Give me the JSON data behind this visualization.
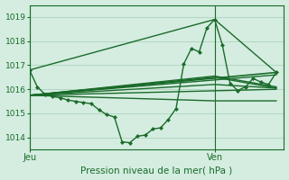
{
  "title": "Pression niveau de la mer( hPa )",
  "bg_color": "#d4ede0",
  "grid_color": "#a8ccb8",
  "line_color": "#1a6b2a",
  "ylim": [
    1013.5,
    1019.5
  ],
  "yticks": [
    1014,
    1015,
    1016,
    1017,
    1018,
    1019
  ],
  "xlim": [
    0,
    33
  ],
  "jeu_x": 0,
  "ven_x": 24,
  "series": [
    {
      "x": [
        0,
        1,
        2,
        3,
        4,
        5,
        6,
        7,
        8,
        9,
        10,
        11,
        12,
        13,
        14,
        15,
        16,
        17,
        18,
        19,
        20,
        21,
        22,
        23,
        24,
        25,
        26,
        27,
        28,
        29,
        30,
        31,
        32
      ],
      "y": [
        1016.8,
        1016.1,
        1015.8,
        1015.7,
        1015.65,
        1015.55,
        1015.5,
        1015.45,
        1015.4,
        1015.15,
        1014.95,
        1014.85,
        1013.82,
        1013.78,
        1014.05,
        1014.1,
        1014.35,
        1014.4,
        1014.75,
        1015.2,
        1017.05,
        1017.7,
        1017.55,
        1018.55,
        1018.9,
        1017.85,
        1016.25,
        1015.95,
        1016.1,
        1016.45,
        1016.3,
        1016.2,
        1016.7
      ],
      "lw": 1.0,
      "marker": true
    },
    {
      "x": [
        0,
        32
      ],
      "y": [
        1015.75,
        1016.6
      ],
      "lw": 1.0,
      "marker": false
    },
    {
      "x": [
        0,
        24,
        32
      ],
      "y": [
        1015.75,
        1016.55,
        1016.1
      ],
      "lw": 1.0,
      "marker": false
    },
    {
      "x": [
        0,
        24,
        32
      ],
      "y": [
        1015.75,
        1016.5,
        1016.05
      ],
      "lw": 1.0,
      "marker": false
    },
    {
      "x": [
        0,
        24,
        32
      ],
      "y": [
        1015.75,
        1016.2,
        1016.05
      ],
      "lw": 1.0,
      "marker": false
    },
    {
      "x": [
        0,
        32
      ],
      "y": [
        1015.75,
        1016.0
      ],
      "lw": 1.0,
      "marker": false
    },
    {
      "x": [
        0,
        24,
        32
      ],
      "y": [
        1015.75,
        1015.52,
        1015.52
      ],
      "lw": 1.0,
      "marker": false
    },
    {
      "x": [
        0,
        32
      ],
      "y": [
        1015.75,
        1016.7
      ],
      "lw": 1.2,
      "marker": false
    },
    {
      "x": [
        0,
        24,
        32
      ],
      "y": [
        1016.8,
        1018.9,
        1016.7
      ],
      "lw": 1.0,
      "marker": false
    }
  ]
}
